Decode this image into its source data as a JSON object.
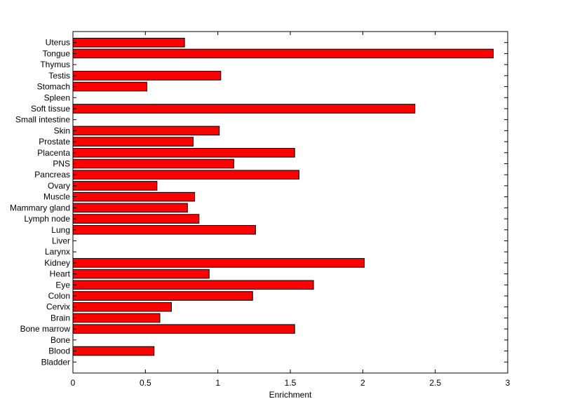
{
  "chart_data": {
    "type": "bar",
    "orientation": "horizontal",
    "title": "",
    "xlabel": "Enrichment",
    "ylabel": "",
    "xlim": [
      0,
      3
    ],
    "xticks": [
      0,
      0.5,
      1,
      1.5,
      2,
      2.5,
      3
    ],
    "xtick_labels": [
      "0",
      "0.5",
      "1",
      "1.5",
      "2",
      "2.5",
      "3"
    ],
    "grid": false,
    "legend": "none",
    "bar_color": "#ff0000",
    "edge_color": "#000000",
    "categories": [
      "Uterus",
      "Tongue",
      "Thymus",
      "Testis",
      "Stomach",
      "Spleen",
      "Soft tissue",
      "Small intestine",
      "Skin",
      "Prostate",
      "Placenta",
      "PNS",
      "Pancreas",
      "Ovary",
      "Muscle",
      "Mammary gland",
      "Lymph node",
      "Lung",
      "Liver",
      "Larynx",
      "Kidney",
      "Heart",
      "Eye",
      "Colon",
      "Cervix",
      "Brain",
      "Bone marrow",
      "Bone",
      "Blood",
      "Bladder"
    ],
    "values": [
      0.77,
      2.9,
      0,
      1.02,
      0.51,
      0,
      2.36,
      0,
      1.01,
      0.83,
      1.53,
      1.11,
      1.56,
      0.58,
      0.84,
      0.79,
      0.87,
      1.26,
      0,
      0,
      2.01,
      0.94,
      1.66,
      1.24,
      0.68,
      0.6,
      1.53,
      0,
      0.56,
      0
    ]
  }
}
